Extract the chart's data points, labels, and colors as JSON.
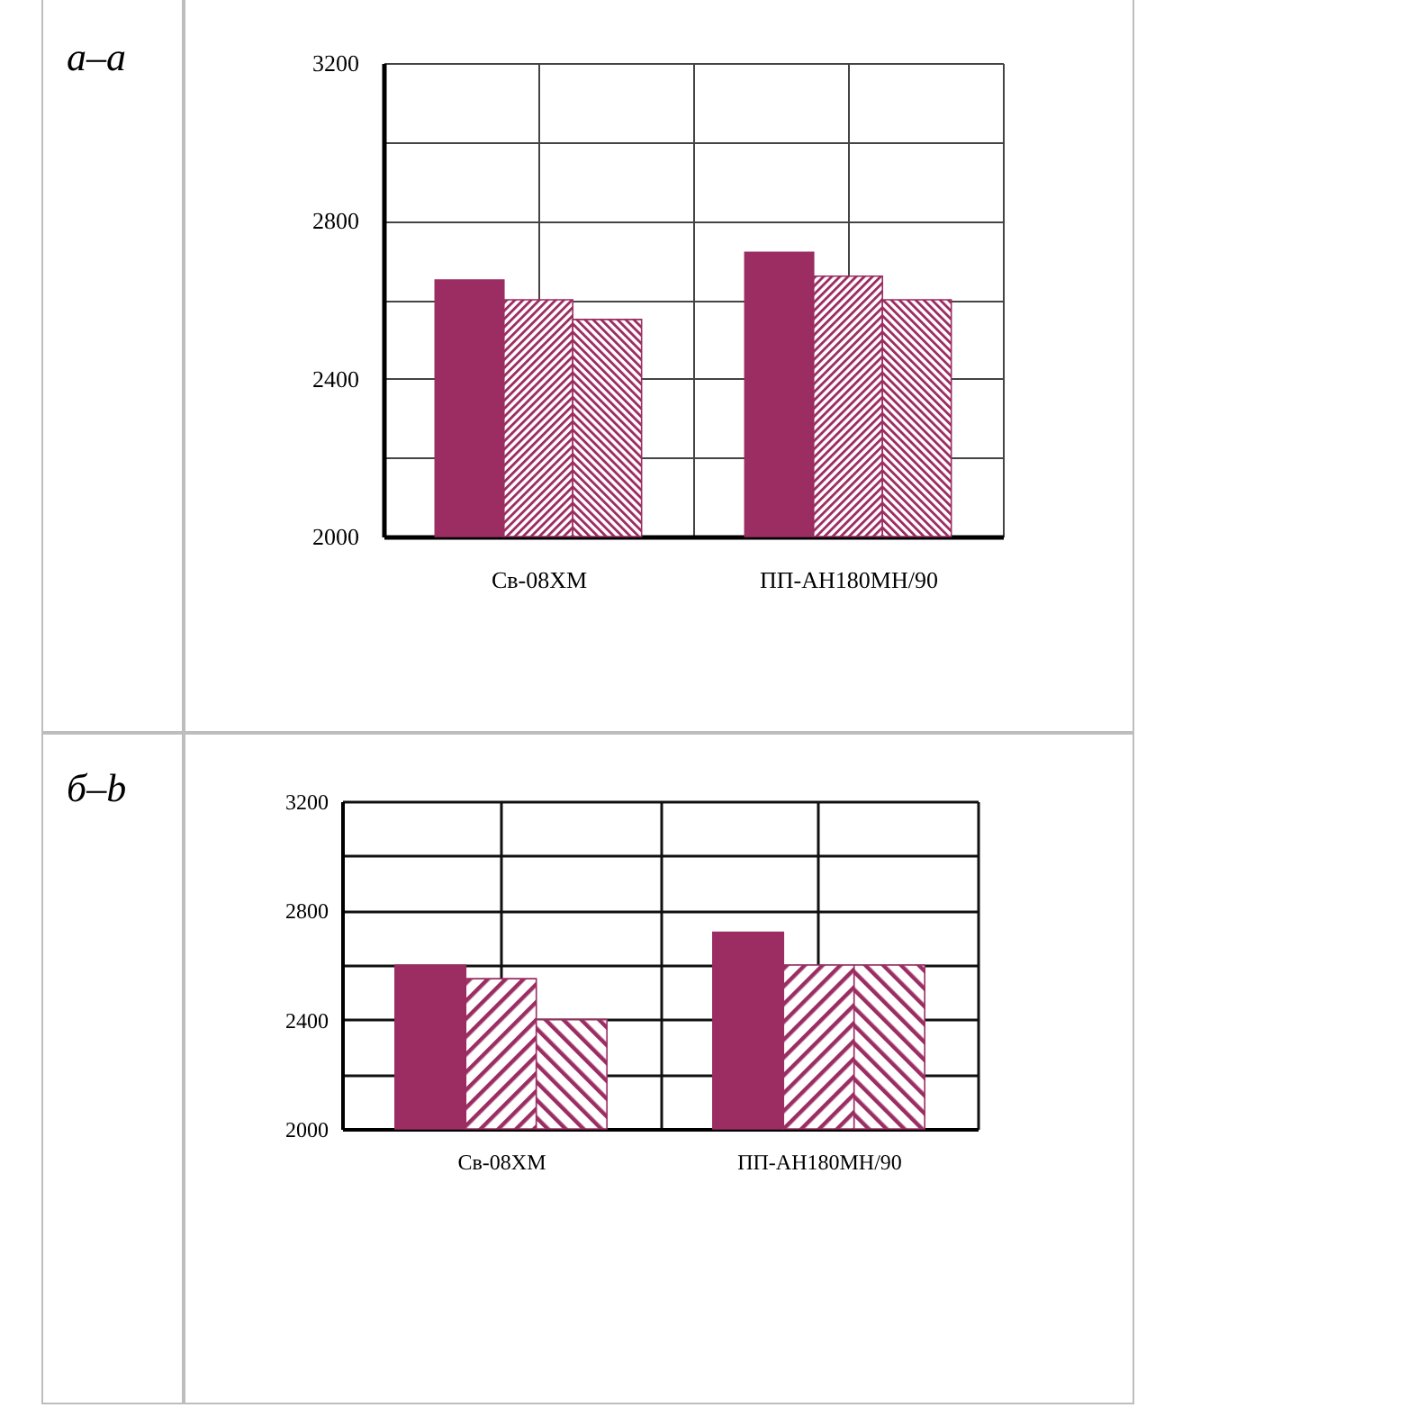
{
  "chart_data": [
    {
      "type": "bar",
      "title": "а–a",
      "categories": [
        "Св-08ХМ",
        "ПП-АН180МН/90"
      ],
      "series": [
        {
          "color": "#9b2d62",
          "values": [
            2650,
            2720
          ]
        },
        {
          "color": "#9b2d62",
          "values": [
            2600,
            2660
          ]
        },
        {
          "color": "#9b2d62",
          "values": [
            2550,
            2600
          ]
        }
      ],
      "ylim": [
        2000,
        3200
      ],
      "yticks": [
        2000,
        {
          "value": 2200,
          "label": null
        },
        2400,
        {
          "value": 2600,
          "label": null
        },
        2800,
        {
          "value": 3000,
          "label": null
        },
        3200
      ],
      "grid": true
    },
    {
      "type": "bar",
      "title": "б–b",
      "categories": [
        "Св-08ХМ",
        "ПП-АН180МН/90"
      ],
      "series": [
        {
          "color": "#9b2d62",
          "values": [
            2600,
            2720
          ]
        },
        {
          "color": "#9b2d62",
          "values": [
            2550,
            2600
          ]
        },
        {
          "color": "#9b2d62",
          "values": [
            2400,
            2600
          ]
        }
      ],
      "ylim": [
        2000,
        3200
      ],
      "yticks": [
        2000,
        {
          "value": 2200,
          "label": null
        },
        2400,
        {
          "value": 2600,
          "label": null
        },
        2800,
        {
          "value": 3000,
          "label": null
        },
        3200
      ],
      "grid": true
    }
  ]
}
